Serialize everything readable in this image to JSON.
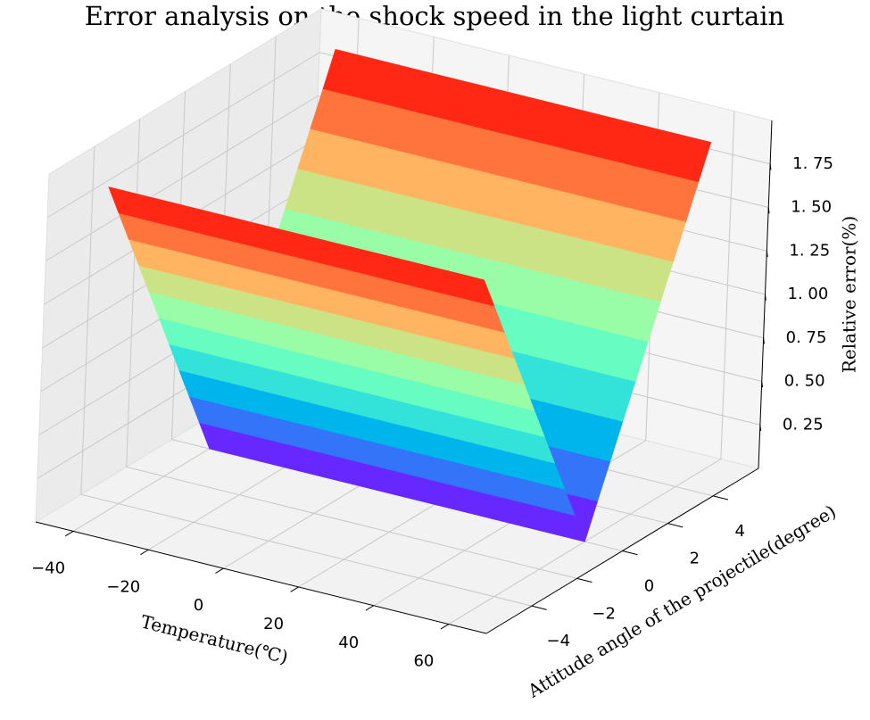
{
  "chart_data": {
    "type": "surface",
    "title": "Error analysis on the shock speed in the light curtain",
    "xlabel": "Temperature(℃)",
    "ylabel": "Attitude angle of the projectile(degree)",
    "zlabel": "Relative error(%)",
    "colormap": "rainbow",
    "x": [
      -40,
      -20,
      0,
      20,
      40,
      60
    ],
    "y": [
      -5,
      -4.5,
      -4,
      -3.5,
      -3,
      -2.5,
      -2,
      -1.5,
      -1,
      -0.5,
      0,
      0.5,
      1,
      1.5,
      2,
      2.5,
      3,
      3.5,
      4,
      4.5,
      5
    ],
    "values": [
      [
        1.9,
        1.71,
        1.52,
        1.33,
        1.14,
        0.95,
        0.76,
        0.57,
        0.38,
        0.19,
        0,
        0.19,
        0.38,
        0.57,
        0.76,
        0.95,
        1.14,
        1.33,
        1.52,
        1.71,
        1.9
      ],
      [
        1.9,
        1.71,
        1.52,
        1.33,
        1.14,
        0.95,
        0.76,
        0.57,
        0.38,
        0.19,
        0,
        0.19,
        0.38,
        0.57,
        0.76,
        0.95,
        1.14,
        1.33,
        1.52,
        1.71,
        1.9
      ],
      [
        1.9,
        1.71,
        1.52,
        1.33,
        1.14,
        0.95,
        0.76,
        0.57,
        0.38,
        0.19,
        0,
        0.19,
        0.38,
        0.57,
        0.76,
        0.95,
        1.14,
        1.33,
        1.52,
        1.71,
        1.9
      ],
      [
        1.9,
        1.71,
        1.52,
        1.33,
        1.14,
        0.95,
        0.76,
        0.57,
        0.38,
        0.19,
        0,
        0.19,
        0.38,
        0.57,
        0.76,
        0.95,
        1.14,
        1.33,
        1.52,
        1.71,
        1.9
      ],
      [
        1.9,
        1.71,
        1.52,
        1.33,
        1.14,
        0.95,
        0.76,
        0.57,
        0.38,
        0.19,
        0,
        0.19,
        0.38,
        0.57,
        0.76,
        0.95,
        1.14,
        1.33,
        1.52,
        1.71,
        1.9
      ],
      [
        1.9,
        1.71,
        1.52,
        1.33,
        1.14,
        0.95,
        0.76,
        0.57,
        0.38,
        0.19,
        0,
        0.19,
        0.38,
        0.57,
        0.76,
        0.95,
        1.14,
        1.33,
        1.52,
        1.71,
        1.9
      ]
    ],
    "xlim": [
      -50,
      70
    ],
    "ylim": [
      -6,
      6
    ],
    "zlim": [
      0,
      2
    ],
    "xticks": [
      {
        "value": -40,
        "label": "−40"
      },
      {
        "value": -20,
        "label": "−20"
      },
      0,
      20,
      40,
      60
    ],
    "yticks": [
      {
        "value": -4,
        "label": "−4"
      },
      {
        "value": -2,
        "label": "−2"
      },
      0,
      2,
      4
    ],
    "zticks": [
      {
        "value": 0.25,
        "label": "0. 25"
      },
      {
        "value": 0.5,
        "label": "0. 50"
      },
      {
        "value": 0.75,
        "label": "0. 75"
      },
      {
        "value": 1.0,
        "label": "1. 00"
      },
      {
        "value": 1.25,
        "label": "1. 25"
      },
      {
        "value": 1.5,
        "label": "1. 50"
      },
      {
        "value": 1.75,
        "label": "1. 75"
      }
    ],
    "grid": true
  }
}
